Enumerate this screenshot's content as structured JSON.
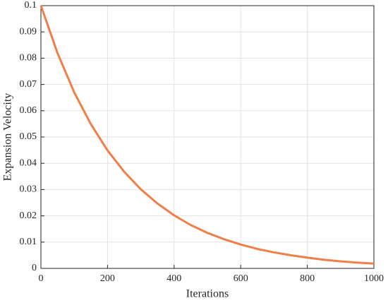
{
  "chart_data": {
    "type": "line",
    "x_label": "Iterations",
    "y_label": "Expansion Velocity",
    "x": [
      0,
      50,
      100,
      150,
      200,
      250,
      300,
      350,
      400,
      450,
      500,
      550,
      600,
      650,
      700,
      750,
      800,
      850,
      900,
      950,
      1000
    ],
    "series": [
      {
        "color": "#ef7f48",
        "values": [
          0.1,
          0.0819,
          0.067,
          0.0549,
          0.0449,
          0.0368,
          0.0301,
          0.0247,
          0.0202,
          0.0165,
          0.0135,
          0.0111,
          0.0091,
          0.0074,
          0.0061,
          0.005,
          0.0041,
          0.0033,
          0.0027,
          0.0022,
          0.0018
        ]
      }
    ],
    "xlim": [
      0,
      1000
    ],
    "xticks": [
      0,
      200,
      400,
      600,
      800,
      1000
    ],
    "ylim": [
      0,
      0.1
    ],
    "yticks": [
      0,
      0.01,
      0.02,
      0.03,
      0.04,
      0.05,
      0.06,
      0.07,
      0.08,
      0.09,
      0.1
    ],
    "grid": true
  }
}
